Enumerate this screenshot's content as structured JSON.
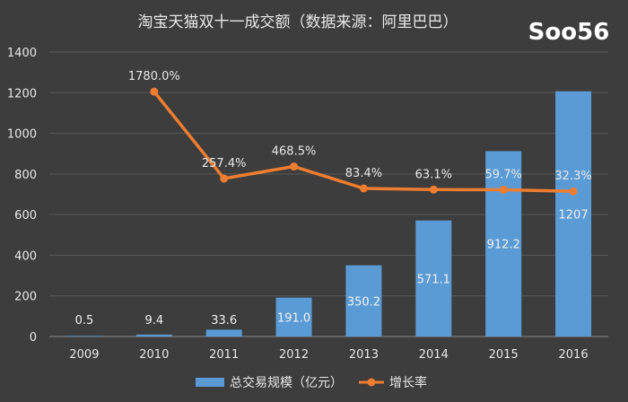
{
  "watermark": "Soo56",
  "chart_data": {
    "type": "bar",
    "title": "淘宝天猫双十一成交额（数据来源：阿里巴巴）",
    "categories": [
      "2009",
      "2010",
      "2011",
      "2012",
      "2013",
      "2014",
      "2015",
      "2016"
    ],
    "series": [
      {
        "name": "总交易规模（亿元）",
        "type": "bar",
        "values": [
          0.5,
          9.4,
          33.6,
          191.0,
          350.2,
          571.1,
          912.2,
          1207
        ],
        "labels": [
          "0.5",
          "9.4",
          "33.6",
          "191.0",
          "350.2",
          "571.1",
          "912.2",
          "1207"
        ]
      },
      {
        "name": "增长率",
        "type": "line",
        "x": [
          "2010",
          "2011",
          "2012",
          "2013",
          "2014",
          "2015",
          "2016"
        ],
        "values": [
          1780.0,
          257.4,
          468.5,
          83.4,
          63.1,
          59.7,
          32.3
        ],
        "labels": [
          "1780.0%",
          "257.4%",
          "468.5%",
          "83.4%",
          "63.1%",
          "59.7%",
          "32.3%"
        ]
      }
    ],
    "yticks": [
      "0",
      "200",
      "400",
      "600",
      "800",
      "1000",
      "1200",
      "1400"
    ],
    "ylim": [
      0,
      1400
    ],
    "grid": true,
    "legend": "bottom",
    "colors": {
      "bar": "#5b9bd5",
      "line": "#ed7d31",
      "text": "#e8e8e8",
      "grid": "#5a5a5a"
    }
  }
}
